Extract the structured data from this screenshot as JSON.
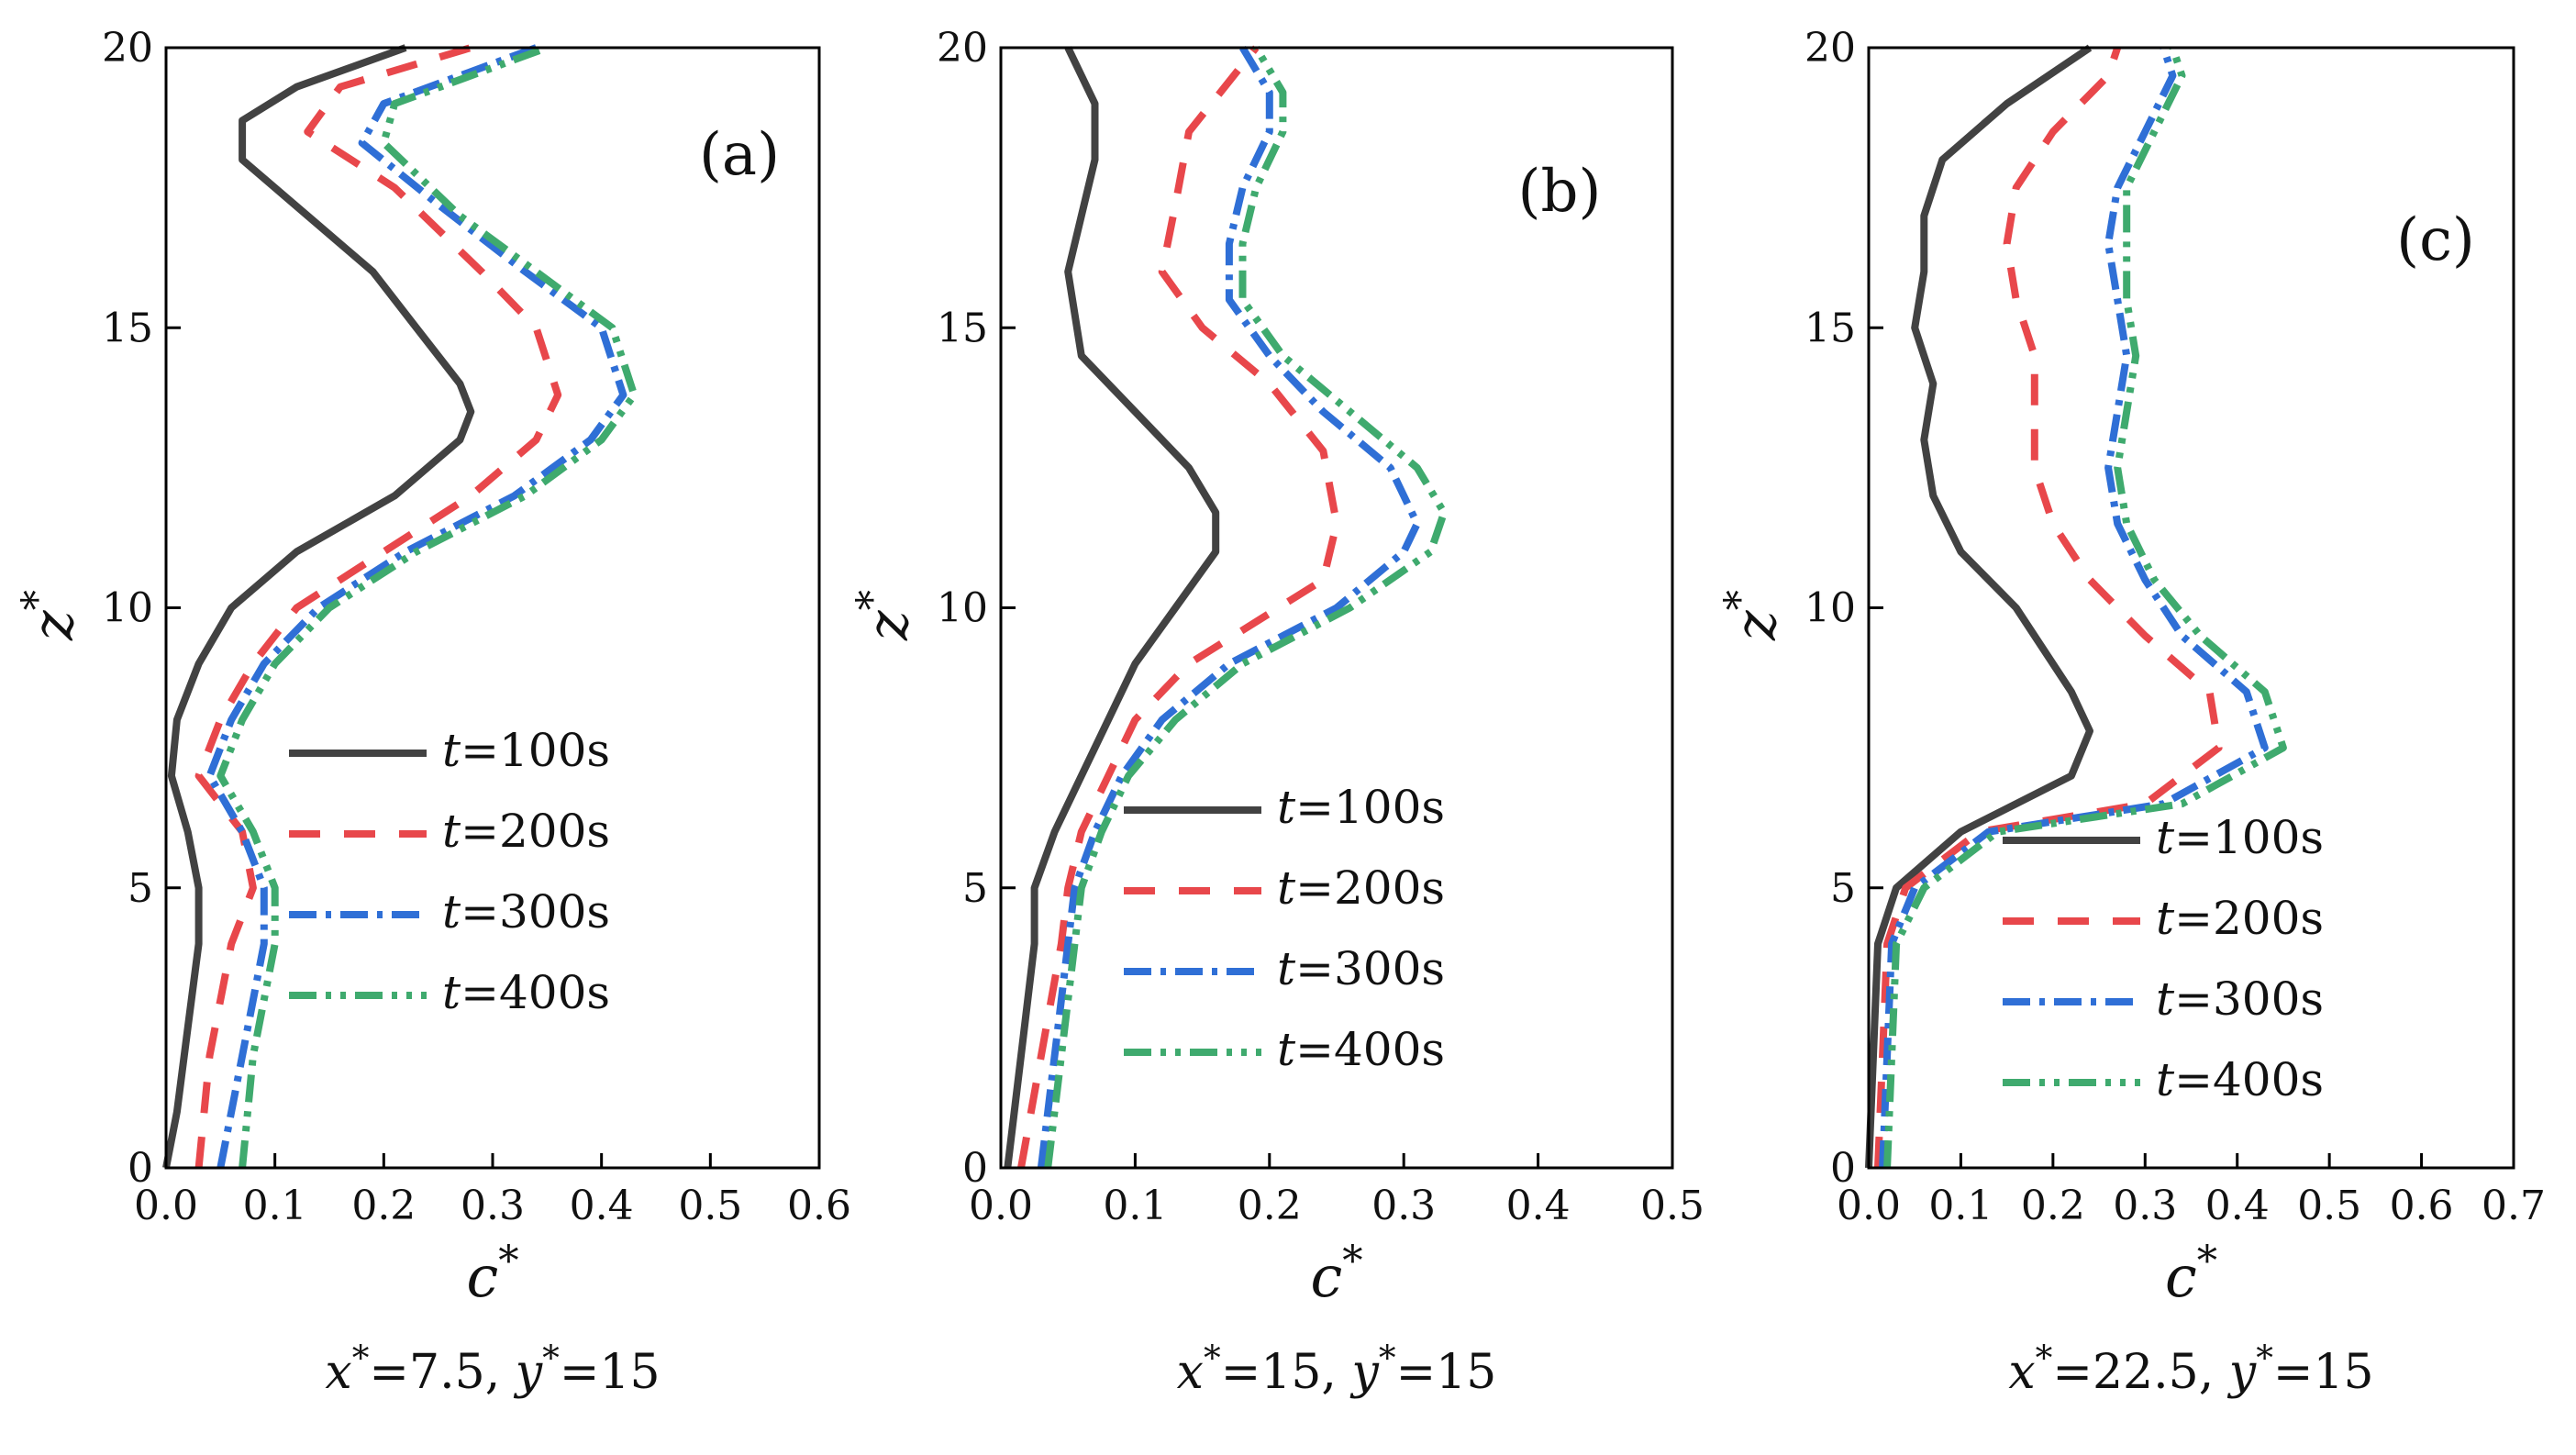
{
  "legend": {
    "var": "t",
    "labels": [
      "=100s",
      "=200s",
      "=300s",
      "=400s"
    ]
  },
  "series_style": [
    {
      "color": "#424242",
      "dash": ""
    },
    {
      "color": "#e8474b",
      "dash": "34,26"
    },
    {
      "color": "#2f6fd6",
      "dash": "30,10,6,10"
    },
    {
      "color": "#3faa6e",
      "dash": "30,10,6,10,6,10"
    }
  ],
  "chart_data": [
    {
      "type": "line",
      "panel_label": "(a)",
      "ylabel": "z*",
      "xlabel": "c*",
      "caption": "x*=7.5, y*=15",
      "xlim": [
        0,
        0.6
      ],
      "ylim": [
        0,
        20
      ],
      "xticks": [
        "0.0",
        "0.1",
        "0.2",
        "0.3",
        "0.4",
        "0.5",
        "0.6"
      ],
      "yticks": [
        "0",
        "5",
        "10",
        "15",
        "20"
      ],
      "legend_position": "bottom-right",
      "series": [
        {
          "name": "t=100s",
          "points": [
            [
              0.0,
              0
            ],
            [
              0.01,
              1
            ],
            [
              0.02,
              2.5
            ],
            [
              0.03,
              4
            ],
            [
              0.03,
              5
            ],
            [
              0.02,
              6
            ],
            [
              0.005,
              7
            ],
            [
              0.01,
              8
            ],
            [
              0.03,
              9
            ],
            [
              0.06,
              10
            ],
            [
              0.12,
              11
            ],
            [
              0.21,
              12
            ],
            [
              0.27,
              13
            ],
            [
              0.28,
              13.5
            ],
            [
              0.27,
              14
            ],
            [
              0.23,
              15
            ],
            [
              0.19,
              16
            ],
            [
              0.13,
              17
            ],
            [
              0.07,
              18
            ],
            [
              0.07,
              18.7
            ],
            [
              0.12,
              19.3
            ],
            [
              0.22,
              20
            ]
          ]
        },
        {
          "name": "t=200s",
          "points": [
            [
              0.03,
              0
            ],
            [
              0.04,
              2
            ],
            [
              0.06,
              4
            ],
            [
              0.08,
              5
            ],
            [
              0.07,
              6
            ],
            [
              0.03,
              7
            ],
            [
              0.05,
              8
            ],
            [
              0.08,
              9
            ],
            [
              0.12,
              10
            ],
            [
              0.2,
              11
            ],
            [
              0.28,
              12
            ],
            [
              0.34,
              13
            ],
            [
              0.36,
              13.8
            ],
            [
              0.34,
              15
            ],
            [
              0.29,
              16
            ],
            [
              0.21,
              17.5
            ],
            [
              0.13,
              18.5
            ],
            [
              0.16,
              19.3
            ],
            [
              0.28,
              20
            ]
          ]
        },
        {
          "name": "t=300s",
          "points": [
            [
              0.05,
              0
            ],
            [
              0.07,
              2
            ],
            [
              0.09,
              4
            ],
            [
              0.09,
              5
            ],
            [
              0.07,
              6
            ],
            [
              0.04,
              7
            ],
            [
              0.06,
              8
            ],
            [
              0.09,
              9
            ],
            [
              0.14,
              10
            ],
            [
              0.22,
              11
            ],
            [
              0.32,
              12
            ],
            [
              0.39,
              13
            ],
            [
              0.42,
              13.8
            ],
            [
              0.4,
              15
            ],
            [
              0.33,
              16
            ],
            [
              0.25,
              17.2
            ],
            [
              0.18,
              18.3
            ],
            [
              0.2,
              19
            ],
            [
              0.34,
              20
            ]
          ]
        },
        {
          "name": "t=400s",
          "points": [
            [
              0.07,
              0
            ],
            [
              0.08,
              2
            ],
            [
              0.1,
              4
            ],
            [
              0.1,
              5
            ],
            [
              0.08,
              6
            ],
            [
              0.05,
              7
            ],
            [
              0.07,
              8
            ],
            [
              0.1,
              9
            ],
            [
              0.15,
              10
            ],
            [
              0.23,
              11
            ],
            [
              0.33,
              12
            ],
            [
              0.4,
              13
            ],
            [
              0.43,
              13.8
            ],
            [
              0.41,
              15
            ],
            [
              0.34,
              16
            ],
            [
              0.27,
              17
            ],
            [
              0.2,
              18.3
            ],
            [
              0.21,
              19
            ],
            [
              0.35,
              20
            ]
          ]
        }
      ]
    },
    {
      "type": "line",
      "panel_label": "(b)",
      "ylabel": "z*",
      "xlabel": "c*",
      "caption": "x*=15, y*=15",
      "xlim": [
        0,
        0.5
      ],
      "ylim": [
        0,
        20
      ],
      "xticks": [
        "0.0",
        "0.1",
        "0.2",
        "0.3",
        "0.4",
        "0.5"
      ],
      "yticks": [
        "0",
        "5",
        "10",
        "15",
        "20"
      ],
      "legend_position": "bottom-right",
      "series": [
        {
          "name": "t=100s",
          "points": [
            [
              0.005,
              0
            ],
            [
              0.015,
              2
            ],
            [
              0.025,
              4
            ],
            [
              0.025,
              5
            ],
            [
              0.04,
              6
            ],
            [
              0.06,
              7
            ],
            [
              0.08,
              8
            ],
            [
              0.1,
              9
            ],
            [
              0.13,
              10
            ],
            [
              0.16,
              11
            ],
            [
              0.16,
              11.7
            ],
            [
              0.14,
              12.5
            ],
            [
              0.1,
              13.5
            ],
            [
              0.06,
              14.5
            ],
            [
              0.05,
              16
            ],
            [
              0.06,
              17
            ],
            [
              0.07,
              18
            ],
            [
              0.07,
              19
            ],
            [
              0.05,
              20
            ]
          ]
        },
        {
          "name": "t=200s",
          "points": [
            [
              0.015,
              0
            ],
            [
              0.03,
              2
            ],
            [
              0.045,
              4
            ],
            [
              0.05,
              5
            ],
            [
              0.06,
              6
            ],
            [
              0.08,
              7
            ],
            [
              0.1,
              8
            ],
            [
              0.14,
              9
            ],
            [
              0.24,
              10.5
            ],
            [
              0.25,
              11.5
            ],
            [
              0.24,
              12.8
            ],
            [
              0.2,
              14
            ],
            [
              0.15,
              15
            ],
            [
              0.12,
              16
            ],
            [
              0.13,
              17.2
            ],
            [
              0.14,
              18.5
            ],
            [
              0.19,
              20
            ]
          ]
        },
        {
          "name": "t=300s",
          "points": [
            [
              0.03,
              0
            ],
            [
              0.04,
              2
            ],
            [
              0.05,
              4
            ],
            [
              0.055,
              5
            ],
            [
              0.07,
              6
            ],
            [
              0.09,
              7
            ],
            [
              0.12,
              8
            ],
            [
              0.17,
              9
            ],
            [
              0.25,
              10
            ],
            [
              0.3,
              11
            ],
            [
              0.31,
              11.5
            ],
            [
              0.29,
              12.5
            ],
            [
              0.24,
              13.5
            ],
            [
              0.2,
              14.5
            ],
            [
              0.17,
              15.5
            ],
            [
              0.17,
              16.5
            ],
            [
              0.18,
              17.5
            ],
            [
              0.2,
              18.5
            ],
            [
              0.2,
              19.2
            ],
            [
              0.18,
              20
            ]
          ]
        },
        {
          "name": "t=400s",
          "points": [
            [
              0.035,
              0
            ],
            [
              0.045,
              2
            ],
            [
              0.055,
              4
            ],
            [
              0.06,
              5
            ],
            [
              0.075,
              6
            ],
            [
              0.095,
              7
            ],
            [
              0.13,
              8
            ],
            [
              0.18,
              9
            ],
            [
              0.26,
              10
            ],
            [
              0.32,
              11
            ],
            [
              0.33,
              11.7
            ],
            [
              0.31,
              12.5
            ],
            [
              0.26,
              13.5
            ],
            [
              0.21,
              14.5
            ],
            [
              0.18,
              15.5
            ],
            [
              0.18,
              16.5
            ],
            [
              0.19,
              17.5
            ],
            [
              0.21,
              18.5
            ],
            [
              0.21,
              19.2
            ],
            [
              0.19,
              20
            ]
          ]
        }
      ]
    },
    {
      "type": "line",
      "panel_label": "(c)",
      "ylabel": "z*",
      "xlabel": "c*",
      "caption": "x*=22.5, y*=15",
      "xlim": [
        0,
        0.7
      ],
      "ylim": [
        0,
        20
      ],
      "xticks": [
        "0.0",
        "0.1",
        "0.2",
        "0.3",
        "0.4",
        "0.5",
        "0.6",
        "0.7"
      ],
      "yticks": [
        "0",
        "5",
        "10",
        "15",
        "20"
      ],
      "legend_position": "bottom-right",
      "series": [
        {
          "name": "t=100s",
          "points": [
            [
              0.0,
              0
            ],
            [
              0.005,
              2
            ],
            [
              0.01,
              4
            ],
            [
              0.03,
              5
            ],
            [
              0.1,
              6
            ],
            [
              0.22,
              7
            ],
            [
              0.24,
              7.8
            ],
            [
              0.22,
              8.5
            ],
            [
              0.16,
              10
            ],
            [
              0.1,
              11
            ],
            [
              0.07,
              12
            ],
            [
              0.06,
              13
            ],
            [
              0.07,
              14
            ],
            [
              0.05,
              15
            ],
            [
              0.06,
              16
            ],
            [
              0.06,
              17
            ],
            [
              0.08,
              18
            ],
            [
              0.15,
              19
            ],
            [
              0.24,
              20
            ]
          ]
        },
        {
          "name": "t=200s",
          "points": [
            [
              0.01,
              0
            ],
            [
              0.015,
              2
            ],
            [
              0.02,
              4
            ],
            [
              0.04,
              5
            ],
            [
              0.12,
              6
            ],
            [
              0.3,
              6.5
            ],
            [
              0.38,
              7.5
            ],
            [
              0.37,
              8.5
            ],
            [
              0.3,
              9.5
            ],
            [
              0.24,
              10.5
            ],
            [
              0.2,
              11.5
            ],
            [
              0.18,
              12.5
            ],
            [
              0.18,
              13.5
            ],
            [
              0.18,
              14.5
            ],
            [
              0.16,
              15.5
            ],
            [
              0.15,
              16.5
            ],
            [
              0.16,
              17.5
            ],
            [
              0.2,
              18.5
            ],
            [
              0.26,
              19.5
            ],
            [
              0.27,
              20
            ]
          ]
        },
        {
          "name": "t=300s",
          "points": [
            [
              0.015,
              0
            ],
            [
              0.02,
              2
            ],
            [
              0.025,
              4
            ],
            [
              0.05,
              5
            ],
            [
              0.13,
              6
            ],
            [
              0.32,
              6.5
            ],
            [
              0.43,
              7.5
            ],
            [
              0.41,
              8.5
            ],
            [
              0.34,
              9.5
            ],
            [
              0.3,
              10.5
            ],
            [
              0.27,
              11.5
            ],
            [
              0.26,
              12.5
            ],
            [
              0.27,
              13.5
            ],
            [
              0.28,
              14.5
            ],
            [
              0.27,
              15.5
            ],
            [
              0.26,
              16.5
            ],
            [
              0.27,
              17.5
            ],
            [
              0.3,
              18.5
            ],
            [
              0.33,
              19.5
            ],
            [
              0.32,
              20
            ]
          ]
        },
        {
          "name": "t=400s",
          "points": [
            [
              0.02,
              0
            ],
            [
              0.025,
              2
            ],
            [
              0.03,
              4
            ],
            [
              0.06,
              5
            ],
            [
              0.14,
              6
            ],
            [
              0.34,
              6.5
            ],
            [
              0.45,
              7.5
            ],
            [
              0.43,
              8.5
            ],
            [
              0.36,
              9.5
            ],
            [
              0.31,
              10.5
            ],
            [
              0.28,
              11.5
            ],
            [
              0.27,
              12.5
            ],
            [
              0.28,
              13.5
            ],
            [
              0.29,
              14.5
            ],
            [
              0.28,
              15.5
            ],
            [
              0.28,
              16.5
            ],
            [
              0.28,
              17.5
            ],
            [
              0.31,
              18.5
            ],
            [
              0.34,
              19.5
            ],
            [
              0.33,
              20
            ]
          ]
        }
      ]
    }
  ]
}
